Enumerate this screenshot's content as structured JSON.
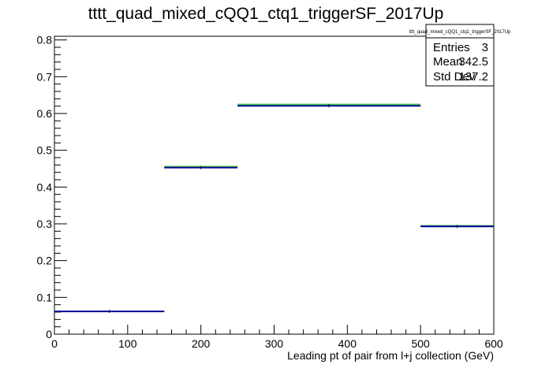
{
  "chart_data": {
    "type": "histogram",
    "title": "tttt_quad_mixed_cQQ1_ctq1_triggerSF_2017Up",
    "xlabel": "Leading pt of pair from l+j collection (GeV)",
    "ylabel": "",
    "xlim": [
      0,
      600
    ],
    "ylim": [
      0,
      0.81
    ],
    "x_ticks": [
      0,
      100,
      200,
      300,
      400,
      500,
      600
    ],
    "y_ticks": [
      0,
      0.1,
      0.2,
      0.3,
      0.4,
      0.5,
      0.6,
      0.7,
      0.8
    ],
    "x_tick_labels": [
      "0",
      "100",
      "200",
      "300",
      "400",
      "500",
      "600"
    ],
    "y_tick_labels": [
      "0",
      "0.1",
      "0.2",
      "0.3",
      "0.4",
      "0.5",
      "0.6",
      "0.7",
      "0.8"
    ],
    "bins": [
      {
        "low": 0,
        "high": 150,
        "value": 0.062
      },
      {
        "low": 150,
        "high": 250,
        "value": 0.453
      },
      {
        "low": 250,
        "high": 500,
        "value": 0.621
      },
      {
        "low": 500,
        "high": 600,
        "value": 0.293
      }
    ],
    "upper_band": [
      0.062,
      0.456,
      0.625,
      0.295
    ],
    "colors": {
      "main": "#000099",
      "band": "#33cc33",
      "marker": "#000000"
    },
    "stats": {
      "title": "tttt_quad_mixed_cQQ1_ctq1_triggerSF_2017Up",
      "rows": [
        {
          "label": "Entries",
          "value": "3"
        },
        {
          "label": "Mean",
          "value": "342.5"
        },
        {
          "label": "Std Dev",
          "value": "137.2"
        }
      ]
    }
  }
}
